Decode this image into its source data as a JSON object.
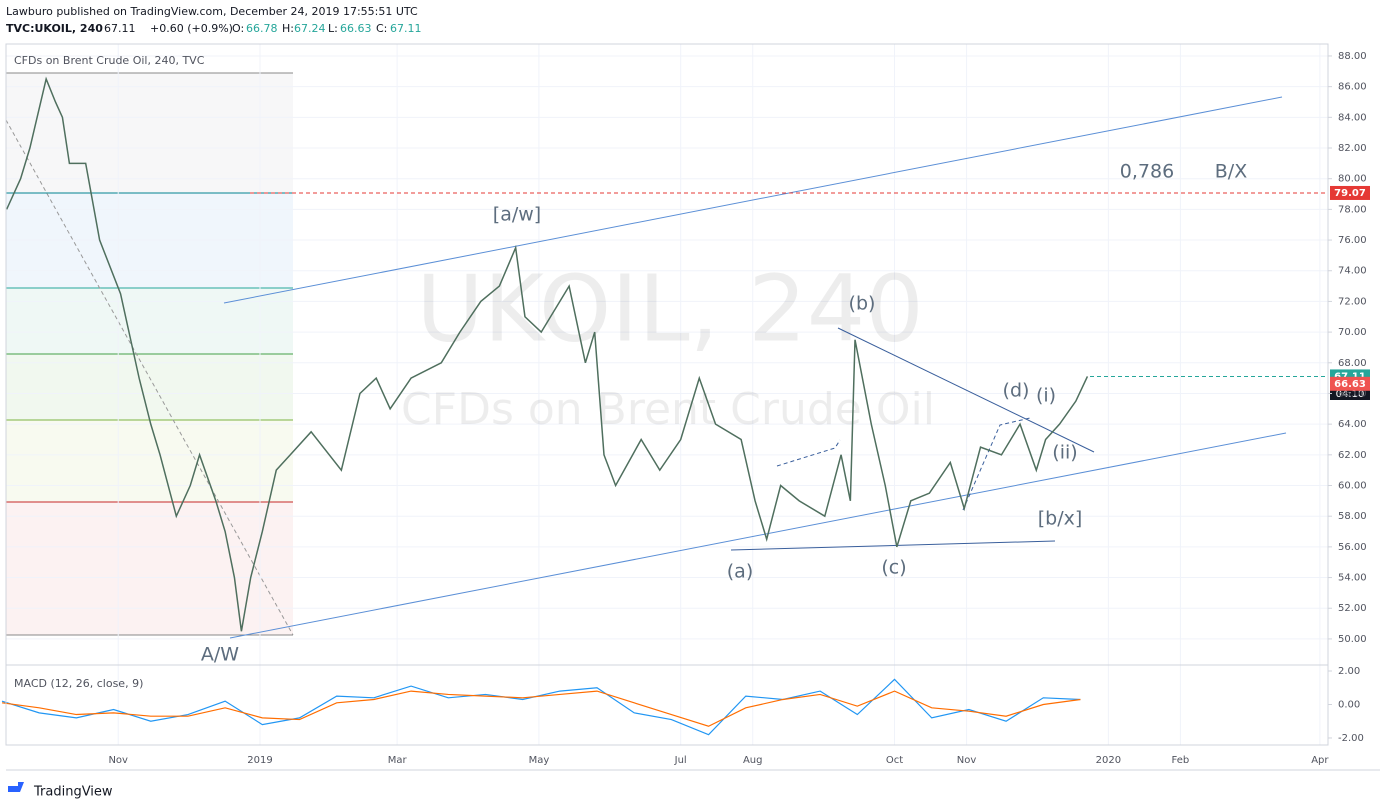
{
  "header": {
    "publisher": "Lawburo published on TradingView.com, December 24, 2019 17:55:51 UTC",
    "symbol": "TVC:UKOIL, 240",
    "last": "67.11",
    "change": "+0.60 (+0.9%)",
    "o_label": "O:",
    "o": "66.78",
    "h_label": "H:",
    "h": "67.24",
    "l_label": "L:",
    "l": "66.63",
    "c_label": "C:",
    "c": "67.11",
    "legend": "CFDs on Brent Crude Oil, 240, TVC",
    "watermark": "UKOIL, 240",
    "watermark_sub": "CFDs on Brent Crude Oil",
    "countdown": "04:10",
    "brand": "TradingView"
  },
  "annotations": {
    "aw": "[a/w]",
    "b": "(b)",
    "d": "(d)",
    "i": "(i)",
    "ii": "(ii)",
    "bx_small": "[b/x]",
    "a": "(a)",
    "c": "(c)",
    "AW": "A/W",
    "fib": "0,786",
    "BX": "B/X"
  },
  "chart_data": [
    {
      "type": "line",
      "title": "CFDs on Brent Crude Oil",
      "x": [
        2,
        8,
        12,
        19,
        23,
        26,
        29,
        36,
        42,
        51,
        59,
        64,
        68,
        75,
        81,
        85,
        92,
        96,
        100,
        103,
        107,
        112,
        118,
        124,
        133,
        146,
        154,
        161,
        167,
        176,
        189,
        197,
        206,
        214,
        221,
        225,
        232,
        244,
        251,
        255,
        259,
        264,
        275,
        283,
        292,
        300,
        307,
        318,
        324,
        329,
        335,
        343,
        354,
        361,
        365,
        367,
        374,
        380,
        385,
        391,
        399,
        408,
        414,
        421,
        430,
        438,
        445,
        449,
        455,
        462,
        467
      ],
      "series": [
        {
          "name": "UKOIL",
          "color": "#4f6f5e",
          "values": [
            78,
            80,
            82,
            86.5,
            85,
            84,
            81,
            81,
            76,
            72.5,
            67,
            64,
            62,
            58,
            60,
            62,
            59,
            57,
            54,
            50.5,
            54,
            57,
            61,
            62,
            63.5,
            61,
            66,
            67,
            65,
            67,
            68,
            70,
            72,
            73,
            75.5,
            71,
            70,
            73,
            68,
            70,
            62,
            60,
            63,
            61,
            63,
            67,
            64,
            63,
            59,
            56.5,
            60,
            59,
            58,
            62,
            59,
            69.5,
            64,
            60,
            56,
            59,
            59.5,
            61.5,
            58.5,
            62.5,
            62,
            64,
            61,
            63,
            64,
            65.5,
            67.11
          ]
        }
      ],
      "xlim": [
        0,
        570.5
      ],
      "ylim": [
        48.3,
        88.78
      ],
      "xticks": [
        {
          "value": 50,
          "label": "Nov"
        },
        {
          "value": 111,
          "label": "2019"
        },
        {
          "value": 170,
          "label": "Mar"
        },
        {
          "value": 231,
          "label": "May"
        },
        {
          "value": 292,
          "label": "Jul"
        },
        {
          "value": 323,
          "label": "Aug"
        },
        {
          "value": 384,
          "label": "Oct"
        },
        {
          "value": 415,
          "label": "Nov"
        },
        {
          "value": 476,
          "label": "2020"
        },
        {
          "value": 507,
          "label": "Feb"
        },
        {
          "value": 567,
          "label": "Apr"
        }
      ],
      "yticks": [
        {
          "value": 50,
          "label": "50.00"
        },
        {
          "value": 52,
          "label": "52.00"
        },
        {
          "value": 54,
          "label": "54.00"
        },
        {
          "value": 56,
          "label": "56.00"
        },
        {
          "value": 58,
          "label": "58.00"
        },
        {
          "value": 60,
          "label": "60.00"
        },
        {
          "value": 62,
          "label": "62.00"
        },
        {
          "value": 64,
          "label": "64.00"
        },
        {
          "value": 66,
          "label": "66.00"
        },
        {
          "value": 68,
          "label": "68.00"
        },
        {
          "value": 70,
          "label": "70.00"
        },
        {
          "value": 72,
          "label": "72.00"
        },
        {
          "value": 74,
          "label": "74.00"
        },
        {
          "value": 76,
          "label": "76.00"
        },
        {
          "value": 78,
          "label": "78.00"
        },
        {
          "value": 80,
          "label": "80.00"
        },
        {
          "value": 82,
          "label": "82.00"
        },
        {
          "value": 84,
          "label": "84.00"
        },
        {
          "value": 86,
          "label": "86.00"
        },
        {
          "value": 88,
          "label": "88.00"
        }
      ],
      "price_labels": [
        {
          "value": 79.07,
          "color": "#e53935"
        },
        {
          "value": 67.11,
          "color": "#26a69a"
        },
        {
          "value": 66.63,
          "color": "#ef5350"
        }
      ],
      "grid": true
    },
    {
      "type": "line",
      "title": "MACD (12, 26, close, 9)",
      "x": [
        0,
        16,
        32,
        48,
        64,
        80,
        96,
        112,
        128,
        144,
        160,
        176,
        192,
        208,
        224,
        240,
        256,
        272,
        288,
        304,
        320,
        336,
        352,
        368,
        384,
        400,
        416,
        432,
        448,
        464
      ],
      "series": [
        {
          "name": "MACD",
          "color": "#2196f3",
          "values": [
            0.2,
            -0.5,
            -0.8,
            -0.3,
            -1.0,
            -0.6,
            0.2,
            -1.2,
            -0.8,
            0.5,
            0.4,
            1.1,
            0.4,
            0.6,
            0.3,
            0.8,
            1.0,
            -0.5,
            -0.9,
            -1.8,
            0.5,
            0.3,
            0.8,
            -0.6,
            1.5,
            -0.8,
            -0.3,
            -1.0,
            0.4,
            0.3
          ]
        },
        {
          "name": "Signal",
          "color": "#ff6d00",
          "values": [
            0.1,
            -0.2,
            -0.6,
            -0.5,
            -0.7,
            -0.7,
            -0.2,
            -0.8,
            -0.9,
            0.1,
            0.3,
            0.8,
            0.6,
            0.5,
            0.4,
            0.6,
            0.8,
            0.1,
            -0.6,
            -1.3,
            -0.2,
            0.3,
            0.6,
            -0.1,
            0.8,
            -0.2,
            -0.4,
            -0.7,
            0.0,
            0.3
          ]
        }
      ],
      "xlim": [
        0,
        570.5
      ],
      "ylim": [
        -2.42,
        2.18
      ],
      "yticks": [
        {
          "value": -2,
          "label": "-2.00"
        },
        {
          "value": 0,
          "label": "0.00"
        },
        {
          "value": 2,
          "label": "2.00"
        }
      ]
    }
  ]
}
